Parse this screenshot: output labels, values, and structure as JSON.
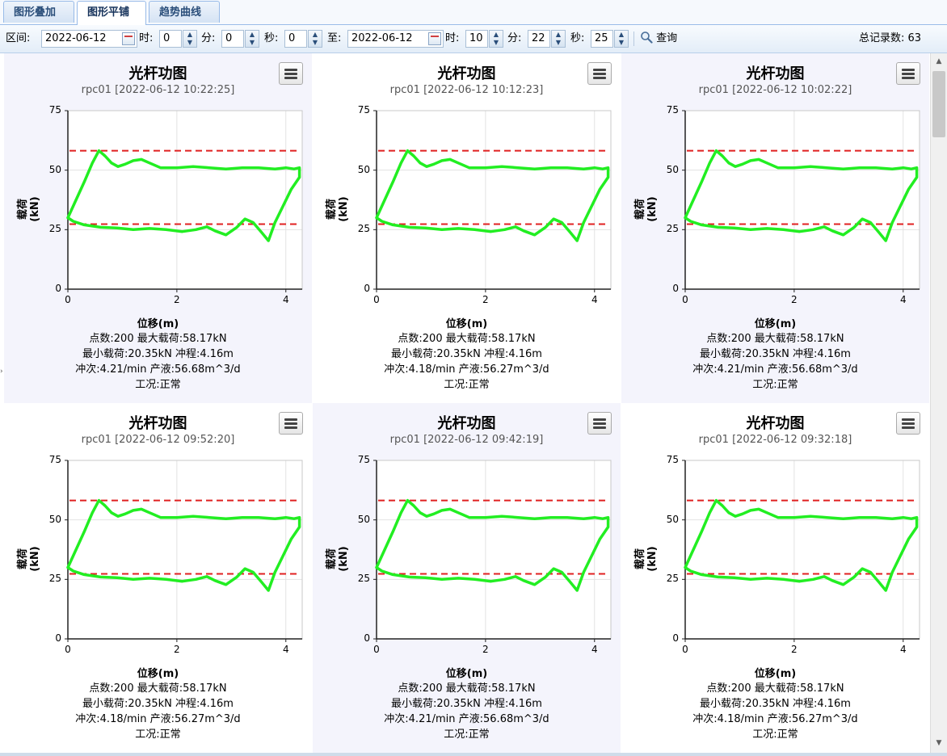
{
  "tabs": [
    {
      "label": "图形叠加"
    },
    {
      "label": "图形平铺"
    },
    {
      "label": "趋势曲线"
    }
  ],
  "toolbar": {
    "range_label": "区间:",
    "start_date": "2022-06-12",
    "hour_label": "时:",
    "start_hour": "0",
    "minute_label": "分:",
    "start_minute": "0",
    "second_label": "秒:",
    "start_second": "0",
    "to_label": "至:",
    "end_date": "2022-06-12",
    "end_hour": "10",
    "end_minute": "22",
    "end_second": "25",
    "query_label": "查询",
    "total_text": "总记录数: 63"
  },
  "icons": {
    "calendar": "calendar-icon",
    "search": "search-icon",
    "menu": "hamburger-menu-icon"
  },
  "colors": {
    "curve": "#22ee22",
    "limit_lines": "#e02020",
    "tab_text": "#2a4e7a"
  },
  "panels": [
    {
      "title": "光杆功图",
      "subtitle": "rpc01 [2022-06-12 10:22:25]",
      "info1": "点数:200 最大载荷:58.17kN",
      "info2": "最小载荷:20.35kN 冲程:4.16m",
      "info3": "冲次:4.21/min 产液:56.68m^3/d",
      "info4": "工况:正常"
    },
    {
      "title": "光杆功图",
      "subtitle": "rpc01 [2022-06-12 10:12:23]",
      "info1": "点数:200 最大载荷:58.17kN",
      "info2": "最小载荷:20.35kN 冲程:4.16m",
      "info3": "冲次:4.18/min 产液:56.27m^3/d",
      "info4": "工况:正常"
    },
    {
      "title": "光杆功图",
      "subtitle": "rpc01 [2022-06-12 10:02:22]",
      "info1": "点数:200 最大载荷:58.17kN",
      "info2": "最小载荷:20.35kN 冲程:4.16m",
      "info3": "冲次:4.21/min 产液:56.68m^3/d",
      "info4": "工况:正常"
    },
    {
      "title": "光杆功图",
      "subtitle": "rpc01 [2022-06-12 09:52:20]",
      "info1": "点数:200 最大载荷:58.17kN",
      "info2": "最小载荷:20.35kN 冲程:4.16m",
      "info3": "冲次:4.18/min 产液:56.27m^3/d",
      "info4": "工况:正常"
    },
    {
      "title": "光杆功图",
      "subtitle": "rpc01 [2022-06-12 09:42:19]",
      "info1": "点数:200 最大载荷:58.17kN",
      "info2": "最小载荷:20.35kN 冲程:4.16m",
      "info3": "冲次:4.21/min 产液:56.68m^3/d",
      "info4": "工况:正常"
    },
    {
      "title": "光杆功图",
      "subtitle": "rpc01 [2022-06-12 09:32:18]",
      "info1": "点数:200 最大载荷:58.17kN",
      "info2": "最小载荷:20.35kN 冲程:4.16m",
      "info3": "冲次:4.18/min 产液:56.27m^3/d",
      "info4": "工况:正常"
    }
  ],
  "chart_data": {
    "type": "line",
    "xlabel": "位移(m)",
    "ylabel": "载荷(kN)",
    "xlim": [
      0,
      4.3
    ],
    "ylim": [
      0,
      75
    ],
    "xticks": [
      "0",
      "2",
      "4"
    ],
    "yticks": [
      "0",
      "25",
      "50",
      "75"
    ],
    "grid": true,
    "limit_lines": [
      58.17,
      27.3
    ],
    "series": [
      {
        "x": [
          0.0,
          0.12,
          0.3,
          0.45,
          0.57,
          0.68,
          0.8,
          0.92,
          1.05,
          1.2,
          1.35,
          1.5,
          1.7,
          2.0,
          2.3,
          2.6,
          2.9,
          3.2,
          3.5,
          3.8,
          4.0,
          4.15,
          4.25,
          4.25,
          4.1,
          3.95,
          3.8,
          3.68,
          3.55,
          3.4,
          3.25,
          3.1,
          2.9,
          2.7,
          2.55,
          2.35,
          2.1,
          1.8,
          1.5,
          1.2,
          0.9,
          0.6,
          0.3,
          0.1,
          0.0
        ],
        "y": [
          30.0,
          36.0,
          45.0,
          53.0,
          58.17,
          56.0,
          53.0,
          51.5,
          52.5,
          54.0,
          54.5,
          53.0,
          51.0,
          51.0,
          51.5,
          51.0,
          50.5,
          51.0,
          51.0,
          50.5,
          51.0,
          50.5,
          51.0,
          47.0,
          42.0,
          35.0,
          28.0,
          20.35,
          24.0,
          28.0,
          29.5,
          26.0,
          22.8,
          24.5,
          26.2,
          25.0,
          24.2,
          25.0,
          25.5,
          25.0,
          25.7,
          26.0,
          27.0,
          28.5,
          30.0
        ]
      }
    ]
  }
}
